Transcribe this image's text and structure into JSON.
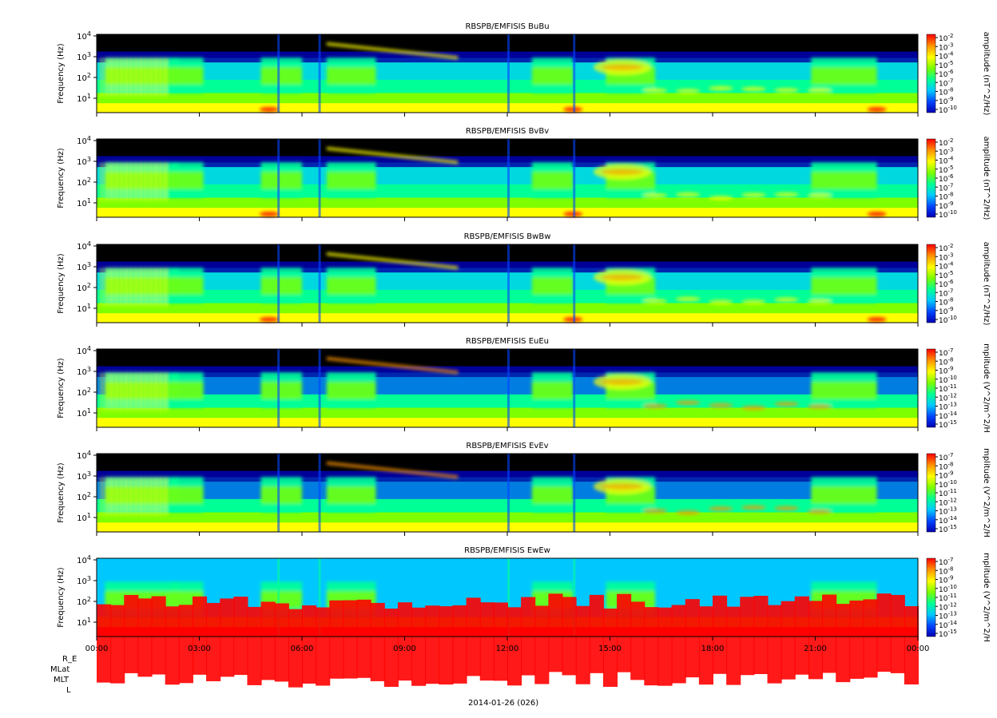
{
  "colors": {
    "background": "#ffffff",
    "colorbar": [
      "#0000b4",
      "#0046ff",
      "#00c8ff",
      "#00ff96",
      "#7dff00",
      "#ffff00",
      "#ff9600",
      "#ff0000"
    ],
    "no_data": "#000000"
  },
  "footer": {
    "row_labels": [
      "R_E",
      "MLat",
      "MLT",
      "L"
    ],
    "date_label": "2014-01-26 (026)"
  },
  "chart_data": [
    {
      "type": "heatmap",
      "title": "RBSPB/EMFISIS  BuBu",
      "ylabel": "Frequency (Hz)",
      "yscale": "log",
      "yticks": [
        "10^1",
        "10^2",
        "10^3",
        "10^4"
      ],
      "colorbar_label": "amplitude (nT^2/Hz)",
      "colorbar_ticks": [
        "10^-2",
        "10^-3",
        "10^-4",
        "10^-5",
        "10^-6",
        "10^-7",
        "10^-8",
        "10^-9",
        "10^-10"
      ],
      "xticks": [
        "00:00",
        "03:00",
        "06:00",
        "09:00",
        "12:00",
        "15:00",
        "18:00",
        "21:00",
        "00:00"
      ]
    },
    {
      "type": "heatmap",
      "title": "RBSPB/EMFISIS  BvBv",
      "ylabel": "Frequency (Hz)",
      "yscale": "log",
      "yticks": [
        "10^1",
        "10^2",
        "10^3",
        "10^4"
      ],
      "colorbar_label": "amplitude (nT^2/Hz)",
      "colorbar_ticks": [
        "10^-2",
        "10^-3",
        "10^-4",
        "10^-5",
        "10^-6",
        "10^-7",
        "10^-8",
        "10^-9",
        "10^-10"
      ],
      "xticks": [
        "00:00",
        "03:00",
        "06:00",
        "09:00",
        "12:00",
        "15:00",
        "18:00",
        "21:00",
        "00:00"
      ]
    },
    {
      "type": "heatmap",
      "title": "RBSPB/EMFISIS  BwBw",
      "ylabel": "Frequency (Hz)",
      "yscale": "log",
      "yticks": [
        "10^1",
        "10^2",
        "10^3",
        "10^4"
      ],
      "colorbar_label": "amplitude (nT^2/Hz)",
      "colorbar_ticks": [
        "10^-2",
        "10^-3",
        "10^-4",
        "10^-5",
        "10^-6",
        "10^-7",
        "10^-8",
        "10^-9",
        "10^-10"
      ],
      "xticks": [
        "00:00",
        "03:00",
        "06:00",
        "09:00",
        "12:00",
        "15:00",
        "18:00",
        "21:00",
        "00:00"
      ]
    },
    {
      "type": "heatmap",
      "title": "RBSPB/EMFISIS  EuEu",
      "ylabel": "Frequency (Hz)",
      "yscale": "log",
      "yticks": [
        "10^1",
        "10^2",
        "10^3",
        "10^4"
      ],
      "colorbar_label": "mplitude (V^2/m^2/H",
      "colorbar_ticks": [
        "10^-7",
        "10^-8",
        "10^-9",
        "10^-10",
        "10^-11",
        "10^-12",
        "10^-13",
        "10^-14",
        "10^-15"
      ],
      "xticks": [
        "00:00",
        "03:00",
        "06:00",
        "09:00",
        "12:00",
        "15:00",
        "18:00",
        "21:00",
        "00:00"
      ]
    },
    {
      "type": "heatmap",
      "title": "RBSPB/EMFISIS  EvEv",
      "ylabel": "Frequency (Hz)",
      "yscale": "log",
      "yticks": [
        "10^1",
        "10^2",
        "10^3",
        "10^4"
      ],
      "colorbar_label": "mplitude (V^2/m^2/H",
      "colorbar_ticks": [
        "10^-7",
        "10^-8",
        "10^-9",
        "10^-10",
        "10^-11",
        "10^-12",
        "10^-13",
        "10^-14",
        "10^-15"
      ],
      "xticks": [
        "00:00",
        "03:00",
        "06:00",
        "09:00",
        "12:00",
        "15:00",
        "18:00",
        "21:00",
        "00:00"
      ]
    },
    {
      "type": "heatmap",
      "title": "RBSPB/EMFISIS  EwEw",
      "ylabel": "Frequency (Hz)",
      "yscale": "log",
      "yticks": [
        "10^1",
        "10^2",
        "10^3",
        "10^4"
      ],
      "colorbar_label": "mplitude (V^2/m^2/H",
      "colorbar_ticks": [
        "10^-7",
        "10^-8",
        "10^-9",
        "10^-10",
        "10^-11",
        "10^-12",
        "10^-13",
        "10^-14",
        "10^-15"
      ],
      "xticks": [
        "00:00",
        "03:00",
        "06:00",
        "09:00",
        "12:00",
        "15:00",
        "18:00",
        "21:00",
        "00:00"
      ]
    }
  ]
}
